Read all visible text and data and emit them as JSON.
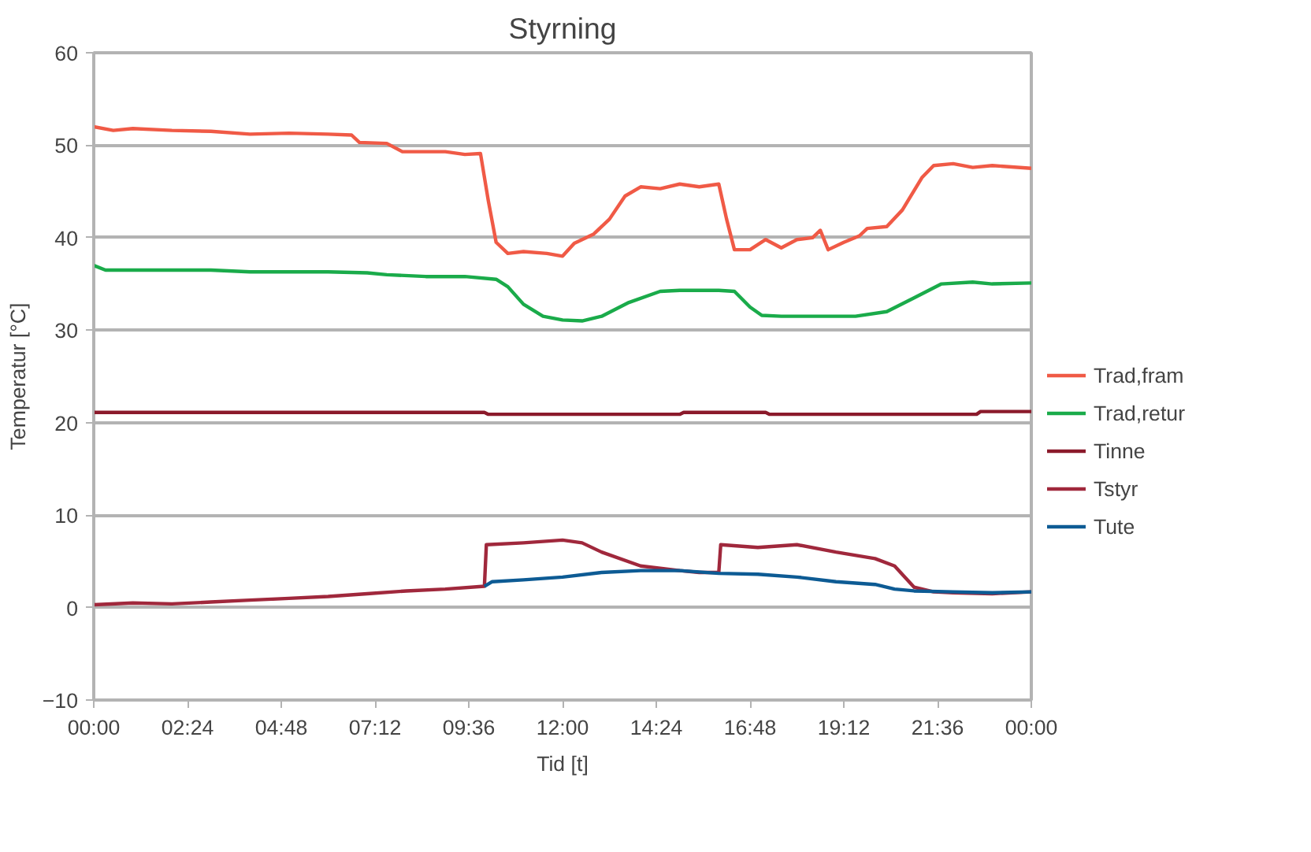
{
  "chart_data": {
    "type": "line",
    "title": "Styrning",
    "xlabel": "Tid [t]",
    "ylabel": "Temperatur [°C]",
    "xlim": [
      0,
      24
    ],
    "ylim": [
      -10,
      60
    ],
    "xticks": [
      {
        "value": 0,
        "label": "00:00"
      },
      {
        "value": 2.4,
        "label": "02:24"
      },
      {
        "value": 4.8,
        "label": "04:48"
      },
      {
        "value": 7.2,
        "label": "07:12"
      },
      {
        "value": 9.6,
        "label": "09:36"
      },
      {
        "value": 12,
        "label": "12:00"
      },
      {
        "value": 14.4,
        "label": "14:24"
      },
      {
        "value": 16.8,
        "label": "16:48"
      },
      {
        "value": 19.2,
        "label": "19:12"
      },
      {
        "value": 21.6,
        "label": "21:36"
      },
      {
        "value": 24,
        "label": "00:00"
      }
    ],
    "yticks": [
      -10,
      0,
      10,
      20,
      30,
      40,
      50,
      60
    ],
    "grid": "y",
    "legend": "right",
    "line_style": "solid",
    "marker": "none",
    "series": [
      {
        "name": "Trad,fram",
        "color": "#f05a46",
        "x": [
          0,
          0.5,
          1,
          2,
          3,
          4,
          5,
          6,
          6.6,
          6.8,
          7.5,
          7.9,
          9,
          9.5,
          9.9,
          10.1,
          10.3,
          10.6,
          11,
          11.6,
          12,
          12.3,
          12.8,
          13.2,
          13.6,
          14,
          14.5,
          15,
          15.5,
          16,
          16.2,
          16.4,
          16.8,
          17.2,
          17.6,
          18,
          18.4,
          18.6,
          18.8,
          19.2,
          19.6,
          19.8,
          20.3,
          20.7,
          21.2,
          21.5,
          22,
          22.5,
          23,
          24
        ],
        "values": [
          52,
          51.6,
          51.8,
          51.6,
          51.5,
          51.2,
          51.3,
          51.2,
          51.1,
          50.3,
          50.2,
          49.3,
          49.3,
          49,
          49.1,
          44,
          39.5,
          38.3,
          38.5,
          38.3,
          38,
          39.4,
          40.4,
          42,
          44.5,
          45.5,
          45.3,
          45.8,
          45.5,
          45.8,
          42,
          38.7,
          38.7,
          39.8,
          38.9,
          39.8,
          40,
          40.8,
          38.7,
          39.5,
          40.2,
          41,
          41.2,
          43,
          46.5,
          47.8,
          48,
          47.6,
          47.8,
          47.5
        ]
      },
      {
        "name": "Trad,retur",
        "color": "#1aab4a",
        "x": [
          0,
          0.3,
          3,
          4,
          6,
          7,
          7.5,
          8.5,
          9.5,
          10.3,
          10.6,
          11,
          11.5,
          12,
          12.5,
          13,
          13.7,
          14.5,
          15,
          16,
          16.4,
          16.8,
          17.1,
          17.6,
          18.5,
          19.5,
          20.3,
          21,
          21.7,
          22.5,
          23,
          24
        ],
        "values": [
          37,
          36.5,
          36.5,
          36.3,
          36.3,
          36.2,
          36,
          35.8,
          35.8,
          35.5,
          34.7,
          32.8,
          31.5,
          31.1,
          31,
          31.5,
          33,
          34.2,
          34.3,
          34.3,
          34.2,
          32.5,
          31.6,
          31.5,
          31.5,
          31.5,
          32,
          33.5,
          35,
          35.2,
          35,
          35.1
        ]
      },
      {
        "name": "Tinne",
        "color": "#8b1a2b",
        "x": [
          0,
          10,
          10.1,
          15,
          15.1,
          17.2,
          17.3,
          22.6,
          22.7,
          24
        ],
        "values": [
          21.1,
          21.1,
          20.9,
          20.9,
          21.1,
          21.1,
          20.9,
          20.9,
          21.2,
          21.2
        ]
      },
      {
        "name": "Tstyr",
        "color": "#a0283c",
        "x": [
          0,
          1,
          2,
          3,
          4,
          5,
          6,
          7,
          8,
          9,
          10,
          10.05,
          11,
          12,
          12.5,
          13,
          14,
          15,
          15.5,
          16,
          16.05,
          17,
          18,
          19,
          20,
          20.5,
          21,
          21.5,
          22,
          23,
          24
        ],
        "values": [
          0.3,
          0.5,
          0.4,
          0.6,
          0.8,
          1,
          1.2,
          1.5,
          1.8,
          2,
          2.3,
          6.8,
          7,
          7.3,
          7,
          6,
          4.5,
          4,
          3.8,
          3.8,
          6.8,
          6.5,
          6.8,
          6,
          5.3,
          4.5,
          2.2,
          1.7,
          1.6,
          1.5,
          1.7
        ]
      },
      {
        "name": "Tute",
        "color": "#0d5b94",
        "x": [
          10,
          10.2,
          11,
          12,
          13,
          14,
          15,
          16,
          17,
          18,
          19,
          20,
          20.5,
          21,
          22,
          23,
          24
        ],
        "values": [
          2.3,
          2.8,
          3,
          3.3,
          3.8,
          4,
          4,
          3.7,
          3.6,
          3.3,
          2.8,
          2.5,
          2,
          1.8,
          1.7,
          1.6,
          1.7
        ]
      }
    ]
  }
}
